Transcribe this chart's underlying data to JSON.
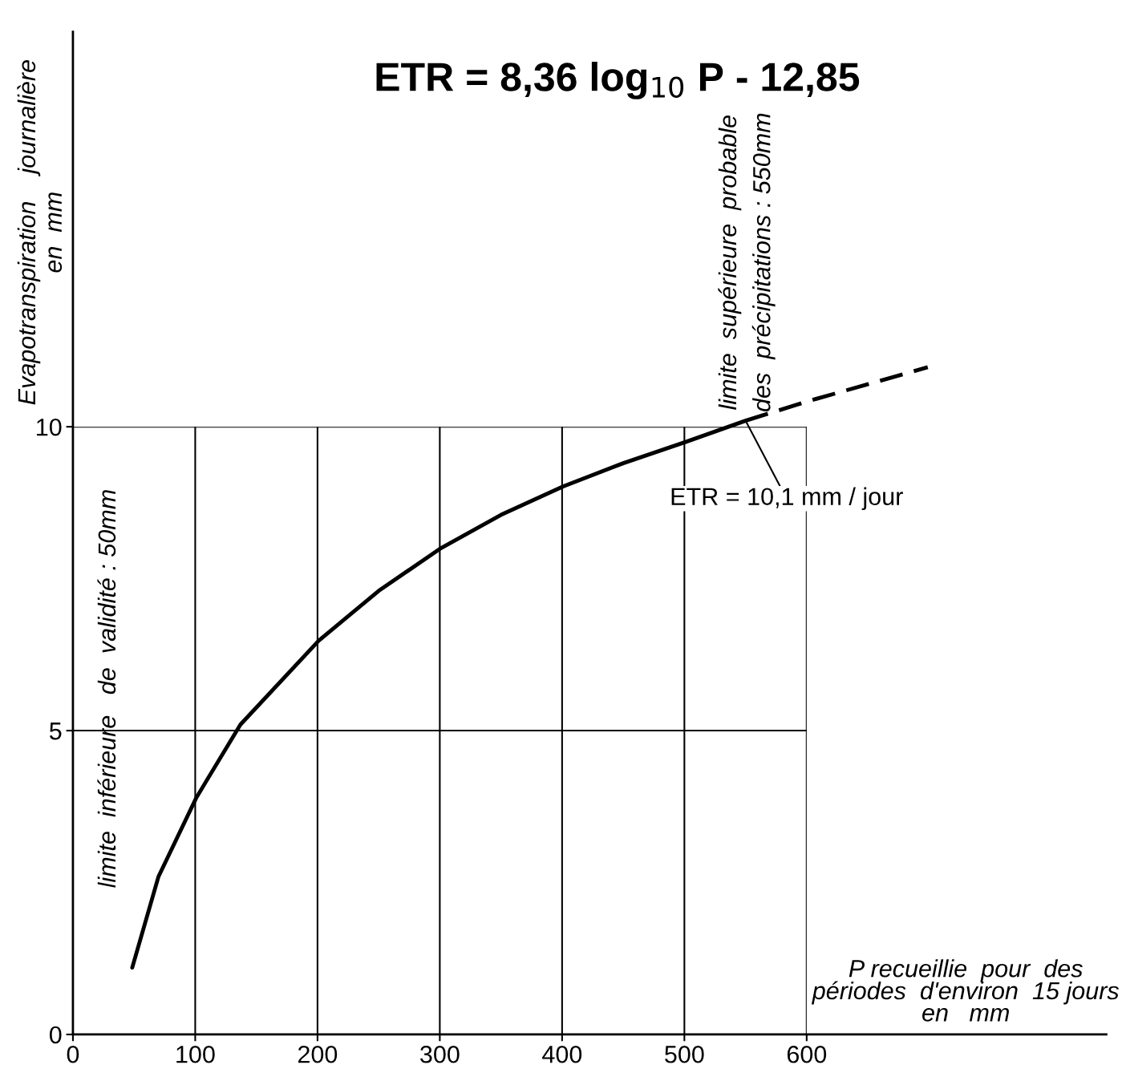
{
  "chart_data": {
    "type": "line",
    "title": "ETR = 8,36 log$_{10}$ P - 12,85",
    "xlabel": "P recueillie  pour  des\npériodes  d'environ  15 jours\nen   mm",
    "ylabel": "Evapotranspiration    journalière\nen  mm",
    "series": [
      {
        "x": [
          48.5,
          70,
          101,
          137,
          201,
          250,
          300,
          350,
          401,
          450,
          501,
          550
        ],
        "values": [
          1.1,
          2.6,
          3.9,
          5.1,
          6.48,
          7.3,
          7.99,
          8.55,
          9.02,
          9.4,
          9.75,
          10.1
        ],
        "color": "#000000",
        "line_style": "solid"
      },
      {
        "x": [
          550,
          601,
          650,
          699
        ],
        "values": [
          10.1,
          10.42,
          10.7,
          10.98
        ],
        "color": "#000000",
        "line_style": "dashed"
      }
    ],
    "xlim": [
      0,
      845
    ],
    "ylim": [
      0,
      16.5
    ],
    "xticks": [
      0,
      100,
      200,
      300,
      400,
      500,
      600
    ],
    "yticks": [
      0,
      5,
      10
    ],
    "grid": true,
    "annotations": [
      "limite  inférieure   de  validité : 50mm",
      "limite  supérieure  probable\ndes  précipitations : 550mm",
      {
        "text": "ETR = 10,1 mm / jour",
        "x": 550,
        "y": 10.1
      }
    ]
  }
}
